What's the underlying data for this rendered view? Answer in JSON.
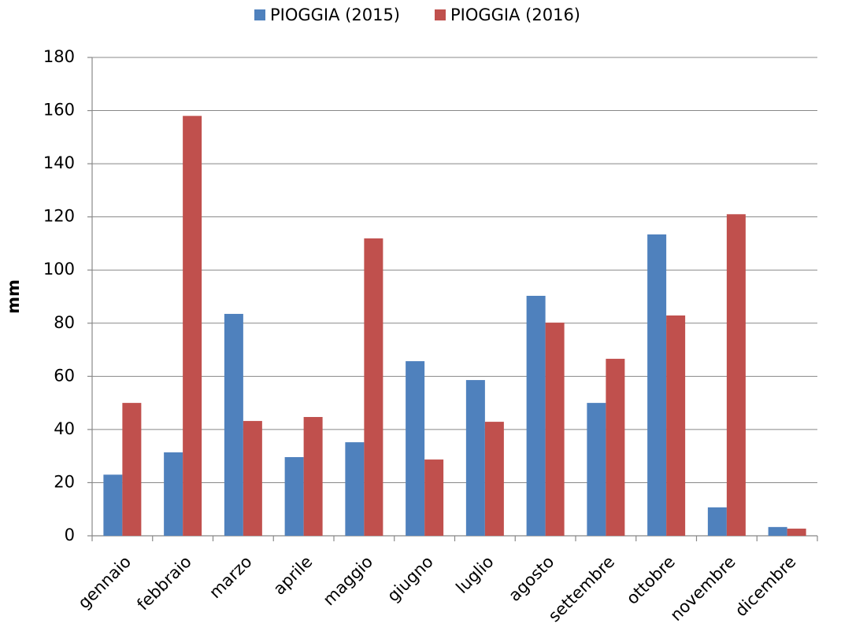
{
  "chart_data": {
    "type": "bar",
    "y_label": "mm",
    "categories": [
      "gennaio",
      "febbraio",
      "marzo",
      "aprile",
      "maggio",
      "giugno",
      "luglio",
      "agosto",
      "settembre",
      "ottobre",
      "novembre",
      "dicembre"
    ],
    "series": [
      {
        "name": "PIOGGIA (2015)",
        "color": "#4f81bd",
        "values": [
          23,
          31.4,
          83.5,
          29.6,
          35.2,
          65.7,
          58.6,
          90.3,
          50,
          113.4,
          10.7,
          3.3
        ]
      },
      {
        "name": "PIOGGIA (2016)",
        "color": "#c0504d",
        "values": [
          50,
          158,
          43.2,
          44.7,
          111.9,
          28.7,
          42.9,
          80.2,
          66.6,
          82.9,
          121,
          2.7
        ]
      }
    ],
    "ylim": [
      0,
      180
    ],
    "yticks": [
      0,
      20,
      40,
      60,
      80,
      100,
      120,
      140,
      160,
      180
    ],
    "grid": true
  }
}
